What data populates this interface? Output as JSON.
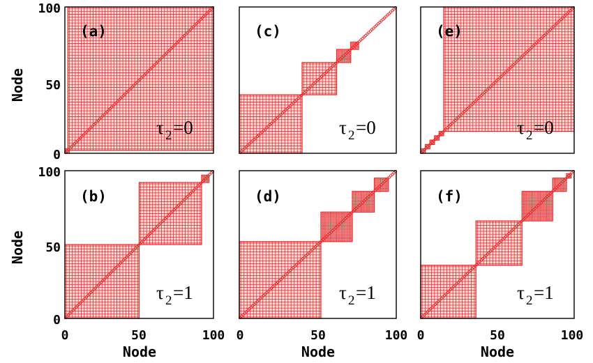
{
  "chart_data": [
    {
      "type": "block-matrix",
      "label": "(a)",
      "annotation": {
        "symbol": "τ",
        "subscript": "2",
        "text": "=0"
      },
      "blocks": [
        [
          1,
          3
        ],
        [
          3,
          100
        ]
      ],
      "diagonal_singletons": true,
      "xlim": [
        0,
        100
      ],
      "ylim": [
        0,
        100
      ]
    },
    {
      "type": "block-matrix",
      "label": "(b)",
      "annotation": {
        "symbol": "τ",
        "subscript": "2",
        "text": "=1"
      },
      "blocks": [
        [
          1,
          50
        ],
        [
          51,
          92
        ],
        [
          93,
          97
        ]
      ],
      "diagonal_singletons": true,
      "xlim": [
        0,
        100
      ],
      "ylim": [
        0,
        100
      ]
    },
    {
      "type": "block-matrix",
      "label": "(c)",
      "annotation": {
        "symbol": "τ",
        "subscript": "2",
        "text": "=0"
      },
      "blocks": [
        [
          1,
          40
        ],
        [
          41,
          62
        ],
        [
          63,
          71
        ],
        [
          72,
          76
        ]
      ],
      "diagonal_singletons": true,
      "xlim": [
        0,
        100
      ],
      "ylim": [
        0,
        100
      ]
    },
    {
      "type": "block-matrix",
      "label": "(d)",
      "annotation": {
        "symbol": "τ",
        "subscript": "2",
        "text": "=1"
      },
      "blocks": [
        [
          1,
          52
        ],
        [
          53,
          72
        ],
        [
          73,
          86
        ],
        [
          87,
          95
        ]
      ],
      "diagonal_singletons": true,
      "xlim": [
        0,
        100
      ],
      "ylim": [
        0,
        100
      ]
    },
    {
      "type": "block-matrix",
      "label": "(e)",
      "annotation": {
        "symbol": "τ",
        "subscript": "2",
        "text": "=0"
      },
      "blocks": [
        [
          1,
          3
        ],
        [
          4,
          6
        ],
        [
          7,
          9
        ],
        [
          10,
          12
        ],
        [
          13,
          15
        ],
        [
          16,
          100
        ]
      ],
      "diagonal_singletons": true,
      "xlim": [
        0,
        100
      ],
      "ylim": [
        0,
        100
      ]
    },
    {
      "type": "block-matrix",
      "label": "(f)",
      "annotation": {
        "symbol": "τ",
        "subscript": "2",
        "text": "=1"
      },
      "blocks": [
        [
          1,
          36
        ],
        [
          37,
          66
        ],
        [
          67,
          86
        ],
        [
          87,
          95
        ],
        [
          96,
          98
        ]
      ],
      "diagonal_singletons": true,
      "xlim": [
        0,
        100
      ],
      "ylim": [
        0,
        100
      ]
    }
  ],
  "axes": {
    "ylabel": "Node",
    "xlabel": "Node",
    "xticks": [
      "0",
      "50",
      "100"
    ],
    "yticks": [
      "0",
      "50",
      "100"
    ]
  },
  "colors": {
    "marker": "#ee2222",
    "marker_fill": "#ffdede",
    "frame": "#000000"
  }
}
